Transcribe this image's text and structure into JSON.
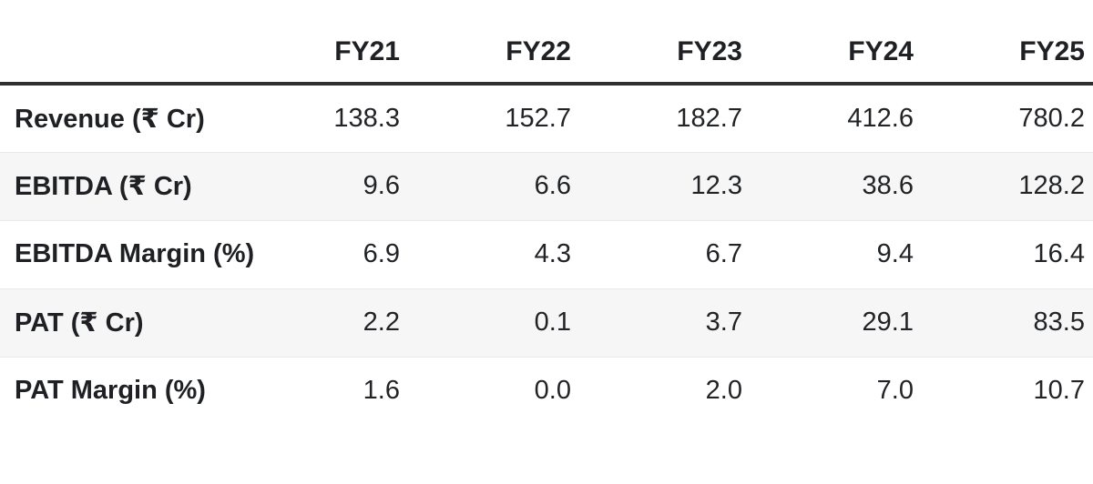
{
  "colors": {
    "background": "#ffffff",
    "text": "#1e2023",
    "header_border": "#2c2e30",
    "row_border": "#e9e9e9",
    "stripe_bg": "#f5f6f5"
  },
  "table": {
    "columns": [
      "",
      "FY21",
      "FY22",
      "FY23",
      "FY24",
      "FY25"
    ],
    "rows": [
      {
        "label": "Revenue (₹ Cr)",
        "values": [
          "138.3",
          "152.7",
          "182.7",
          "412.6",
          "780.2"
        ]
      },
      {
        "label": "EBITDA (₹ Cr)",
        "values": [
          "9.6",
          "6.6",
          "12.3",
          "38.6",
          "128.2"
        ]
      },
      {
        "label": "EBITDA Margin (%)",
        "values": [
          "6.9",
          "4.3",
          "6.7",
          "9.4",
          "16.4"
        ]
      },
      {
        "label": "PAT (₹ Cr)",
        "values": [
          "2.2",
          "0.1",
          "3.7",
          "29.1",
          "83.5"
        ]
      },
      {
        "label": "PAT Margin (%)",
        "values": [
          "1.6",
          "0.0",
          "2.0",
          "7.0",
          "10.7"
        ]
      }
    ]
  },
  "chart_data": {
    "type": "table",
    "categories": [
      "FY21",
      "FY22",
      "FY23",
      "FY24",
      "FY25"
    ],
    "series": [
      {
        "name": "Revenue (₹ Cr)",
        "values": [
          138.3,
          152.7,
          182.7,
          412.6,
          780.2
        ]
      },
      {
        "name": "EBITDA (₹ Cr)",
        "values": [
          9.6,
          6.6,
          12.3,
          38.6,
          128.2
        ]
      },
      {
        "name": "EBITDA Margin (%)",
        "values": [
          6.9,
          4.3,
          6.7,
          9.4,
          16.4
        ]
      },
      {
        "name": "PAT (₹ Cr)",
        "values": [
          2.2,
          0.1,
          3.7,
          29.1,
          83.5
        ]
      },
      {
        "name": "PAT Margin (%)",
        "values": [
          1.6,
          0.0,
          2.0,
          7.0,
          10.7
        ]
      }
    ],
    "title": "",
    "layout": "annual financial summary table, striped rows, right-aligned values"
  }
}
